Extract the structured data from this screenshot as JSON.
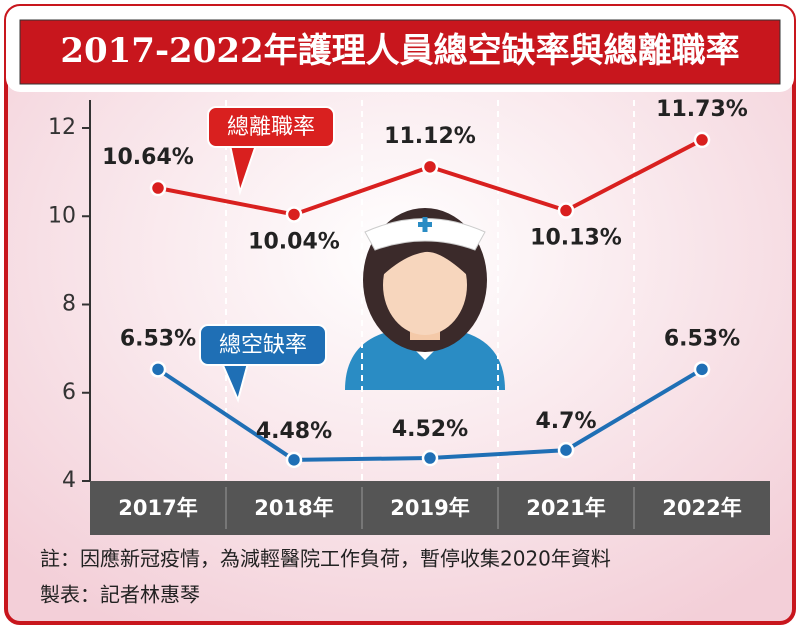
{
  "chart_data": {
    "type": "line",
    "title": "2017-2022年護理人員總空缺率與總離職率",
    "categories": [
      "2017年",
      "2018年",
      "2019年",
      "2021年",
      "2022年"
    ],
    "series": [
      {
        "name": "總離職率",
        "color": "#d9201f",
        "values": [
          10.64,
          10.04,
          11.12,
          10.13,
          11.73
        ],
        "value_labels": [
          "10.64%",
          "10.04%",
          "11.12%",
          "10.13%",
          "11.73%"
        ]
      },
      {
        "name": "總空缺率",
        "color": "#1f6fb5",
        "values": [
          6.53,
          4.48,
          4.52,
          4.7,
          6.53
        ],
        "value_labels": [
          "6.53%",
          "4.48%",
          "4.52%",
          "4.7%",
          "6.53%"
        ]
      }
    ],
    "ylim": [
      4,
      12
    ],
    "yticks": [
      4,
      6,
      8,
      10,
      12
    ],
    "note": "註：因應新冠疫情，為減輕醫院工作負荷，暫停收集2020年資料",
    "source": "製表：記者林惠琴"
  }
}
